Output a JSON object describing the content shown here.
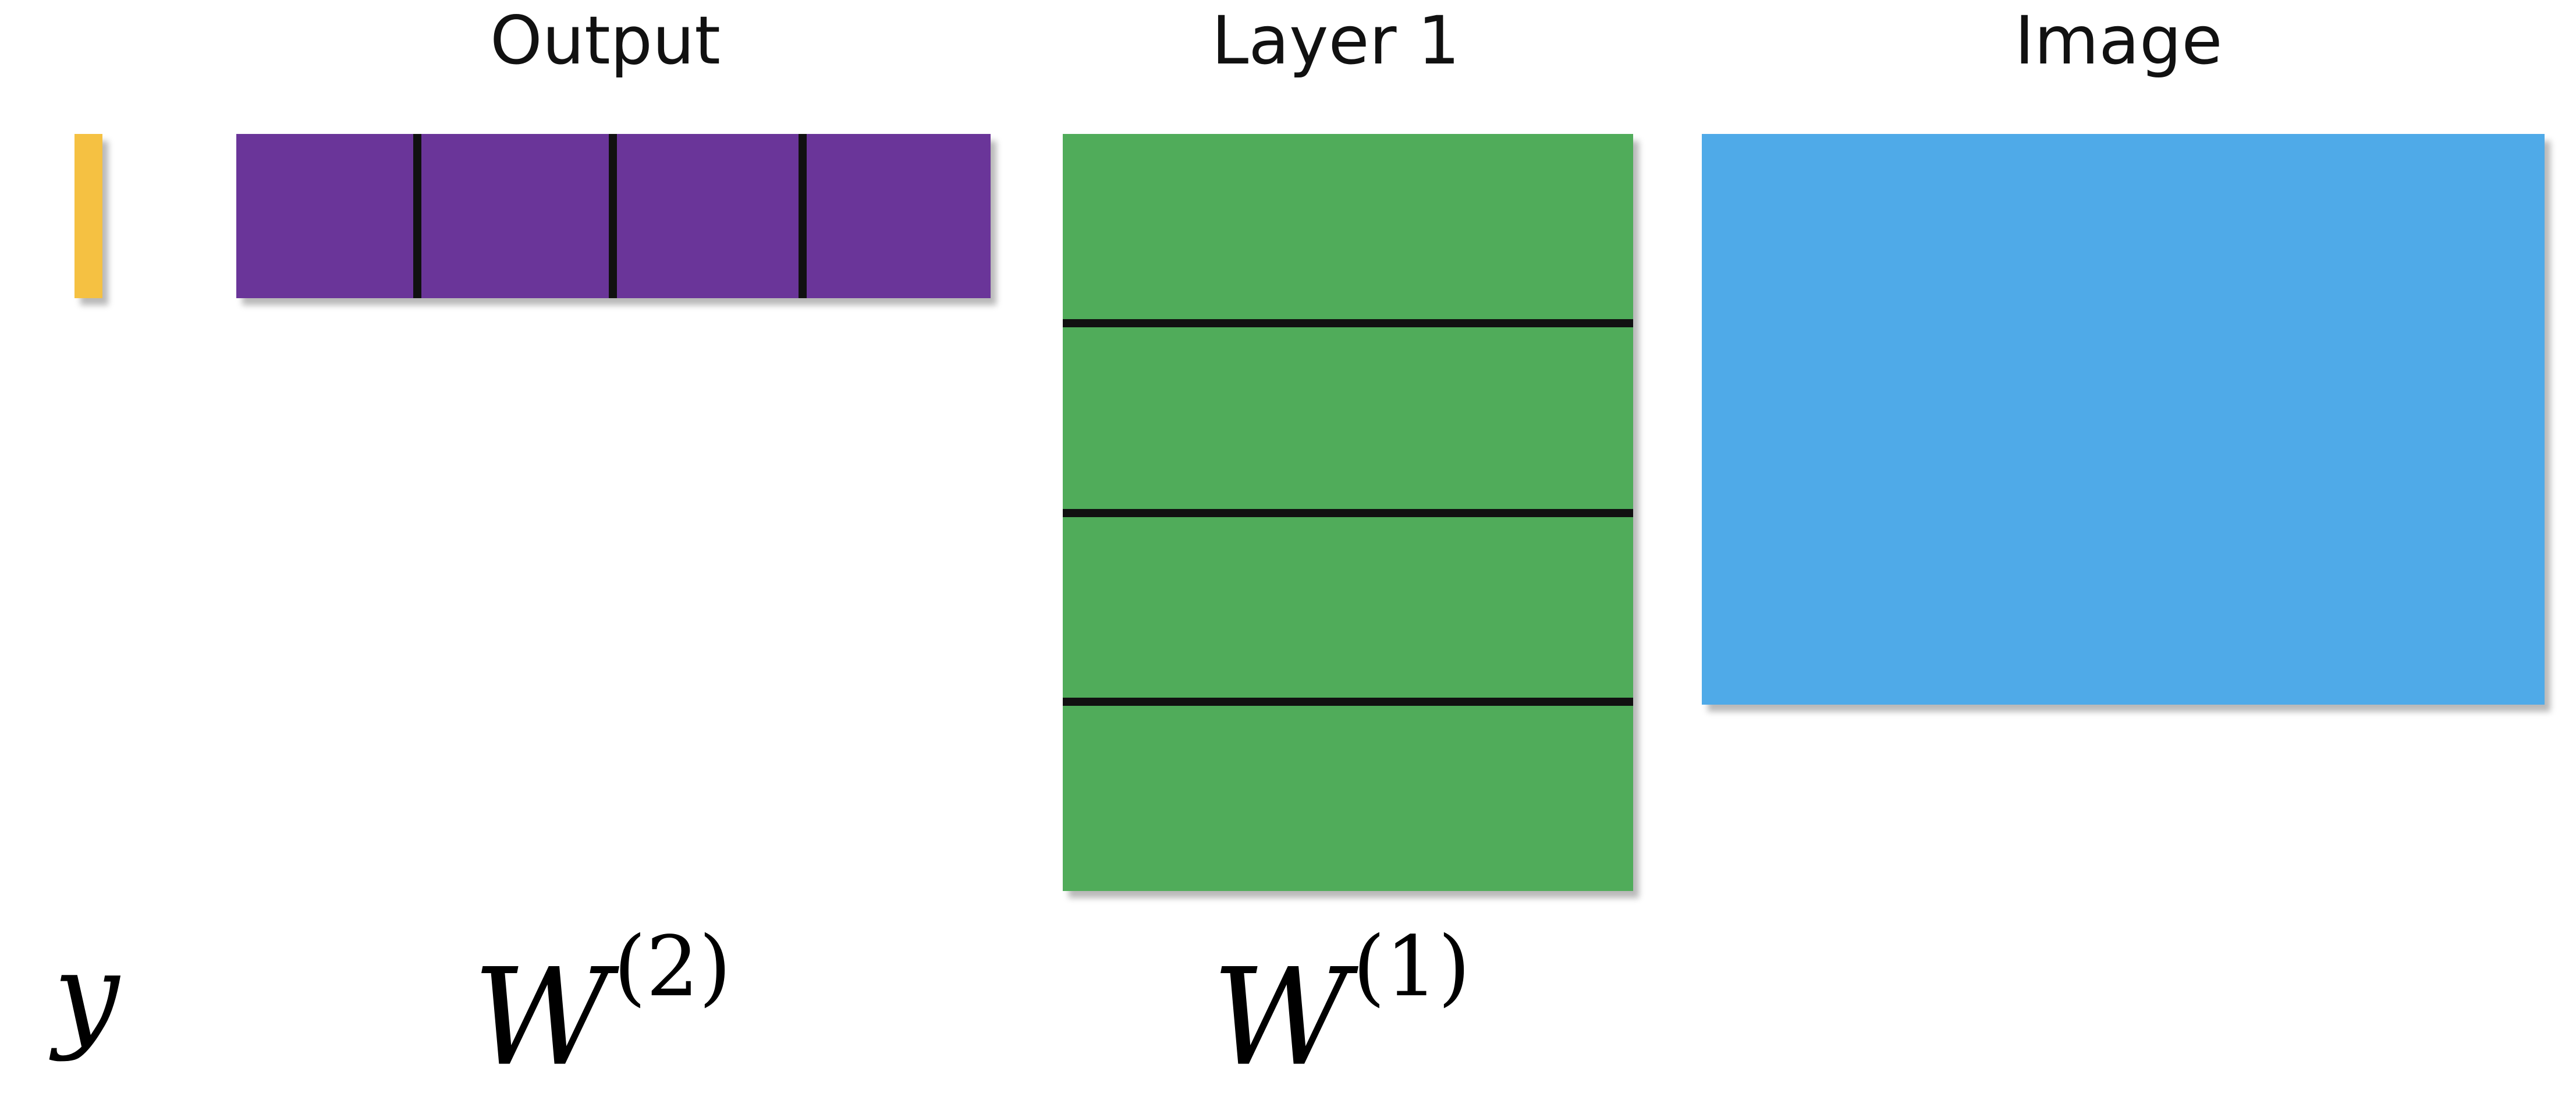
{
  "headings": {
    "output": "Output",
    "layer1": "Layer 1",
    "image": "Image"
  },
  "labels": {
    "y": "y",
    "w2_base": "W",
    "w2_sup": "(2)",
    "w1_base": "W",
    "w1_sup": "(1)"
  },
  "colors": {
    "y_vector": "#F5C142",
    "output_weights": "#6A3599",
    "layer1_weights": "#50AC5A",
    "image": "#4FAAE8",
    "dividers": "#111111"
  }
}
